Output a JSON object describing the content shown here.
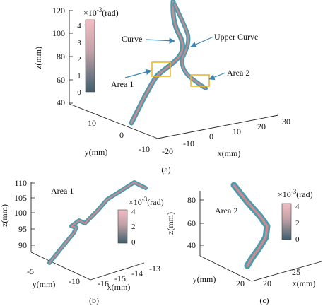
{
  "figure": {
    "panel_a": {
      "caption": "(a)",
      "z_label": "z(mm)",
      "y_label": "y(mm)",
      "x_label": "x(mm)",
      "z_ticks": [
        "120",
        "100",
        "80",
        "60",
        "40"
      ],
      "y_ticks": [
        "10",
        "0",
        "-10"
      ],
      "x_ticks": [
        "30",
        "20",
        "10",
        "0",
        "-10",
        "-20"
      ],
      "colorbar_unit": "×10",
      "colorbar_exp": "-3",
      "colorbar_rad": "(rad)",
      "colorbar_ticks": [
        "4",
        "3",
        "2",
        "1",
        "0"
      ],
      "label_curve": "Curve",
      "label_upper_curve": "Upper Curve",
      "label_area1": "Area 1",
      "label_area2": "Area 2"
    },
    "panel_b": {
      "caption": "(b)",
      "area_title": "Area 1",
      "z_label": "z(mm)",
      "y_label": "y(mm)",
      "x_label": "x(mm)",
      "z_ticks": [
        "110",
        "105",
        "100",
        "95",
        "90"
      ],
      "y_ticks": [
        "-5",
        "-10"
      ],
      "x_ticks": [
        "-13",
        "-14",
        "-15",
        "-16"
      ],
      "colorbar_unit": "×10",
      "colorbar_exp": "-3",
      "colorbar_rad": "(rad)",
      "colorbar_ticks": [
        "4",
        "2",
        "0"
      ]
    },
    "panel_c": {
      "caption": "(c)",
      "area_title": "Area 2",
      "z_label": "z(mm)",
      "y_label": "y(mm)",
      "x_label": "x(mm)",
      "z_ticks": [
        "80",
        "60",
        "40"
      ],
      "y_ticks": [
        "20"
      ],
      "x_ticks": [
        "25",
        "20"
      ],
      "colorbar_unit": "×10",
      "colorbar_exp": "-3",
      "colorbar_rad": "(rad)",
      "colorbar_ticks": [
        "4",
        "2",
        "0"
      ]
    },
    "colors": {
      "tube_outer": "#4a9cab",
      "tube_inner": "#c98a94",
      "colorbar_top": "#f3bcc4",
      "colorbar_bottom": "#3f5f6c",
      "highlight_box": "#f2b824",
      "arrow": "#3b86b4"
    }
  }
}
